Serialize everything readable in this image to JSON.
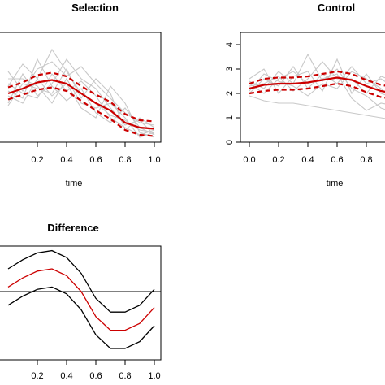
{
  "chart_data": [
    {
      "type": "line",
      "title": "Selection",
      "xlabel": "time",
      "ylabel": "",
      "xlim": [
        0.0,
        1.0
      ],
      "ylim": [
        0,
        4.5
      ],
      "xticks": [
        "0.2",
        "0.4",
        "0.6",
        "0.8",
        "1.0"
      ],
      "yticks": [],
      "colors": {
        "individual": "#c8c8c8",
        "mean": "#cc0000",
        "band": "#cc0000"
      },
      "series": [
        {
          "role": "mean",
          "x": [
            0,
            0.1,
            0.2,
            0.3,
            0.4,
            0.5,
            0.6,
            0.7,
            0.8,
            0.9,
            1.0
          ],
          "values": [
            2.0,
            2.2,
            2.45,
            2.55,
            2.4,
            2.0,
            1.6,
            1.3,
            0.8,
            0.6,
            0.55
          ]
        },
        {
          "role": "upper",
          "x": [
            0,
            0.1,
            0.2,
            0.3,
            0.4,
            0.5,
            0.6,
            0.7,
            0.8,
            0.9,
            1.0
          ],
          "values": [
            2.25,
            2.45,
            2.75,
            2.85,
            2.7,
            2.3,
            1.95,
            1.65,
            1.15,
            0.9,
            0.85
          ]
        },
        {
          "role": "lower",
          "x": [
            0,
            0.1,
            0.2,
            0.3,
            0.4,
            0.5,
            0.6,
            0.7,
            0.8,
            0.9,
            1.0
          ],
          "values": [
            1.75,
            1.95,
            2.15,
            2.25,
            2.1,
            1.7,
            1.3,
            0.95,
            0.5,
            0.3,
            0.25
          ]
        }
      ],
      "individuals": [
        {
          "x": [
            0,
            0.1,
            0.2,
            0.3,
            0.4,
            0.5,
            0.6,
            0.7,
            0.8,
            0.9,
            1.0
          ],
          "values": [
            2.3,
            3.2,
            2.6,
            3.8,
            2.9,
            2.0,
            1.6,
            1.1,
            0.9,
            0.5,
            0.4
          ]
        },
        {
          "x": [
            0,
            0.1,
            0.2,
            0.3,
            0.4,
            0.5,
            0.6,
            0.7,
            0.8,
            0.9,
            1.0
          ],
          "values": [
            1.6,
            2.8,
            1.9,
            2.4,
            3.4,
            2.6,
            2.2,
            1.4,
            0.7,
            0.9,
            0.3
          ]
        },
        {
          "x": [
            0,
            0.1,
            0.2,
            0.3,
            0.4,
            0.5,
            0.6,
            0.7,
            0.8,
            0.9,
            1.0
          ],
          "values": [
            2.9,
            2.1,
            3.0,
            3.3,
            2.7,
            3.1,
            2.4,
            1.8,
            1.2,
            0.8,
            0.7
          ]
        },
        {
          "x": [
            0,
            0.1,
            0.2,
            0.3,
            0.4,
            0.5,
            0.6,
            0.7,
            0.8,
            0.9,
            1.0
          ],
          "values": [
            1.9,
            1.6,
            2.6,
            1.9,
            2.4,
            1.4,
            1.0,
            2.3,
            1.6,
            0.4,
            0.2
          ]
        },
        {
          "x": [
            0,
            0.1,
            0.2,
            0.3,
            0.4,
            0.5,
            0.6,
            0.7,
            0.8,
            0.9,
            1.0
          ],
          "values": [
            2.4,
            2.0,
            1.8,
            2.8,
            2.1,
            2.5,
            1.9,
            1.0,
            0.6,
            0.3,
            0.5
          ]
        },
        {
          "x": [
            0,
            0.1,
            0.2,
            0.3,
            0.4,
            0.5,
            0.6,
            0.7,
            0.8,
            0.9,
            1.0
          ],
          "values": [
            1.5,
            2.4,
            2.2,
            2.0,
            3.0,
            1.8,
            2.6,
            2.0,
            0.5,
            1.0,
            0.6
          ]
        },
        {
          "x": [
            0,
            0.1,
            0.2,
            0.3,
            0.4,
            0.5,
            0.6,
            0.7,
            0.8,
            0.9,
            1.0
          ],
          "values": [
            2.1,
            1.8,
            3.4,
            2.3,
            1.7,
            2.2,
            1.2,
            0.8,
            1.4,
            0.6,
            0.3
          ]
        },
        {
          "x": [
            0,
            0.1,
            0.2,
            0.3,
            0.4,
            0.5,
            0.6,
            0.7,
            0.8,
            0.9,
            1.0
          ],
          "values": [
            2.6,
            2.6,
            2.3,
            1.6,
            2.6,
            1.6,
            1.4,
            1.6,
            1.0,
            0.2,
            0.4
          ]
        }
      ]
    },
    {
      "type": "line",
      "title": "Control",
      "xlabel": "time",
      "ylabel": "",
      "xlim": [
        0.0,
        1.0
      ],
      "ylim": [
        0,
        4.5
      ],
      "xticks": [
        "0.0",
        "0.2",
        "0.4",
        "0.6",
        "0.8"
      ],
      "yticks": [
        "0",
        "1",
        "2",
        "3",
        "4"
      ],
      "colors": {
        "individual": "#c8c8c8",
        "mean": "#cc0000",
        "band": "#cc0000"
      },
      "series": [
        {
          "role": "mean",
          "x": [
            0,
            0.1,
            0.2,
            0.3,
            0.4,
            0.5,
            0.6,
            0.7,
            0.8,
            0.9,
            1.0
          ],
          "values": [
            2.2,
            2.35,
            2.4,
            2.4,
            2.45,
            2.55,
            2.65,
            2.55,
            2.3,
            2.1,
            2.0
          ]
        },
        {
          "role": "upper",
          "x": [
            0,
            0.1,
            0.2,
            0.3,
            0.4,
            0.5,
            0.6,
            0.7,
            0.8,
            0.9,
            1.0
          ],
          "values": [
            2.4,
            2.6,
            2.65,
            2.65,
            2.7,
            2.8,
            2.9,
            2.8,
            2.55,
            2.35,
            2.25
          ]
        },
        {
          "role": "lower",
          "x": [
            0,
            0.1,
            0.2,
            0.3,
            0.4,
            0.5,
            0.6,
            0.7,
            0.8,
            0.9,
            1.0
          ],
          "values": [
            2.0,
            2.1,
            2.15,
            2.15,
            2.2,
            2.3,
            2.4,
            2.3,
            2.05,
            1.85,
            1.75
          ]
        }
      ],
      "individuals": [
        {
          "x": [
            0,
            0.1,
            0.2,
            0.3,
            0.4,
            0.5,
            0.6,
            0.7,
            0.8,
            0.9,
            1.0
          ],
          "values": [
            2.5,
            2.2,
            2.9,
            2.4,
            3.6,
            2.5,
            3.0,
            2.2,
            1.9,
            1.4,
            1.2
          ]
        },
        {
          "x": [
            0,
            0.1,
            0.2,
            0.3,
            0.4,
            0.5,
            0.6,
            0.7,
            0.8,
            0.9,
            1.0
          ],
          "values": [
            2.0,
            2.6,
            2.3,
            3.1,
            2.2,
            2.8,
            2.4,
            3.1,
            2.4,
            2.6,
            2.2
          ]
        },
        {
          "x": [
            0,
            0.1,
            0.2,
            0.3,
            0.4,
            0.5,
            0.6,
            0.7,
            0.8,
            0.9,
            1.0
          ],
          "values": [
            2.6,
            3.0,
            2.0,
            2.7,
            2.9,
            2.1,
            3.4,
            2.0,
            2.8,
            2.0,
            1.8
          ]
        },
        {
          "x": [
            0,
            0.1,
            0.2,
            0.3,
            0.4,
            0.5,
            0.6,
            0.7,
            0.8,
            0.9,
            1.0
          ],
          "values": [
            1.9,
            1.7,
            1.6,
            1.6,
            1.5,
            1.4,
            1.3,
            1.2,
            1.1,
            1.0,
            0.9
          ]
        },
        {
          "x": [
            0,
            0.1,
            0.2,
            0.3,
            0.4,
            0.5,
            0.6,
            0.7,
            0.8,
            0.9,
            1.0
          ],
          "values": [
            2.3,
            2.4,
            2.7,
            2.1,
            2.6,
            3.3,
            2.6,
            2.6,
            2.0,
            2.7,
            2.5
          ]
        },
        {
          "x": [
            0,
            0.1,
            0.2,
            0.3,
            0.4,
            0.5,
            0.6,
            0.7,
            0.8,
            0.9,
            1.0
          ],
          "values": [
            2.1,
            2.8,
            2.5,
            2.3,
            1.9,
            2.4,
            2.2,
            2.9,
            2.6,
            2.2,
            1.7
          ]
        },
        {
          "x": [
            0,
            0.1,
            0.2,
            0.3,
            0.4,
            0.5,
            0.6,
            0.7,
            0.8,
            0.9,
            1.0
          ],
          "values": [
            2.4,
            2.0,
            2.6,
            2.9,
            2.4,
            2.6,
            2.8,
            1.8,
            1.3,
            1.6,
            1.5
          ]
        }
      ]
    },
    {
      "type": "line",
      "title": "Difference",
      "xlabel": "",
      "ylabel": "",
      "xlim": [
        0.0,
        1.0
      ],
      "ylim": [
        -1.5,
        1.0
      ],
      "xticks": [
        "0.2",
        "0.4",
        "0.6",
        "0.8",
        "1.0"
      ],
      "yticks": [],
      "hline": 0,
      "colors": {
        "mean": "#cc0000",
        "band": "#000000",
        "zero": "#000000"
      },
      "series": [
        {
          "role": "mean",
          "x": [
            0,
            0.1,
            0.2,
            0.3,
            0.4,
            0.5,
            0.6,
            0.7,
            0.8,
            0.9,
            1.0
          ],
          "values": [
            0.1,
            0.3,
            0.45,
            0.5,
            0.35,
            0.0,
            -0.55,
            -0.85,
            -0.85,
            -0.7,
            -0.35
          ]
        },
        {
          "role": "upper",
          "x": [
            0,
            0.1,
            0.2,
            0.3,
            0.4,
            0.5,
            0.6,
            0.7,
            0.8,
            0.9,
            1.0
          ],
          "values": [
            0.5,
            0.7,
            0.85,
            0.9,
            0.75,
            0.4,
            -0.15,
            -0.45,
            -0.45,
            -0.3,
            0.05
          ]
        },
        {
          "role": "lower",
          "x": [
            0,
            0.1,
            0.2,
            0.3,
            0.4,
            0.5,
            0.6,
            0.7,
            0.8,
            0.9,
            1.0
          ],
          "values": [
            -0.3,
            -0.1,
            0.05,
            0.1,
            -0.05,
            -0.4,
            -0.95,
            -1.25,
            -1.25,
            -1.1,
            -0.75
          ]
        }
      ]
    }
  ]
}
